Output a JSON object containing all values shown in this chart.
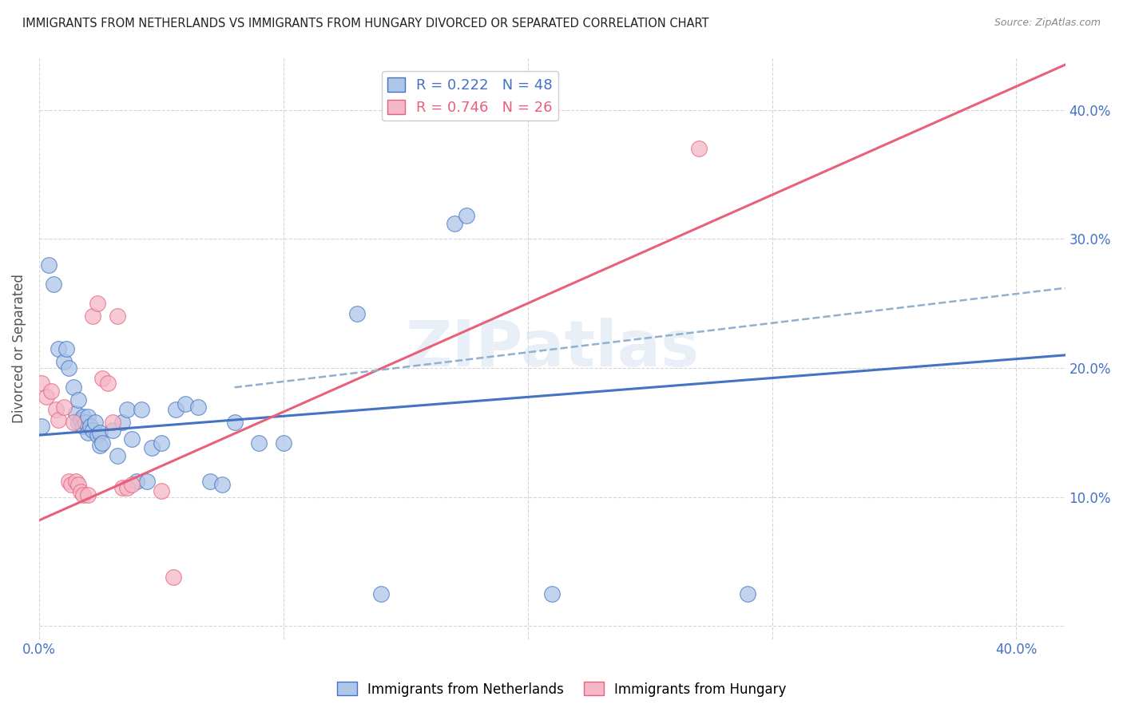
{
  "title": "IMMIGRANTS FROM NETHERLANDS VS IMMIGRANTS FROM HUNGARY DIVORCED OR SEPARATED CORRELATION CHART",
  "source": "Source: ZipAtlas.com",
  "ylabel": "Divorced or Separated",
  "xlim": [
    0.0,
    0.42
  ],
  "ylim": [
    -0.01,
    0.44
  ],
  "xticks": [
    0.0,
    0.1,
    0.2,
    0.3,
    0.4
  ],
  "yticks": [
    0.0,
    0.1,
    0.2,
    0.3,
    0.4
  ],
  "watermark": "ZIPatlas",
  "netherlands_color": "#aec6e8",
  "hungary_color": "#f4b8c8",
  "netherlands_line_color": "#4472c4",
  "hungary_line_color": "#e8607a",
  "dashed_line_color": "#90b0d0",
  "netherlands_scatter": [
    [
      0.001,
      0.155
    ],
    [
      0.004,
      0.28
    ],
    [
      0.006,
      0.265
    ],
    [
      0.008,
      0.215
    ],
    [
      0.01,
      0.205
    ],
    [
      0.011,
      0.215
    ],
    [
      0.012,
      0.2
    ],
    [
      0.014,
      0.185
    ],
    [
      0.015,
      0.165
    ],
    [
      0.016,
      0.175
    ],
    [
      0.016,
      0.158
    ],
    [
      0.017,
      0.16
    ],
    [
      0.018,
      0.162
    ],
    [
      0.018,
      0.155
    ],
    [
      0.019,
      0.158
    ],
    [
      0.02,
      0.162
    ],
    [
      0.02,
      0.15
    ],
    [
      0.021,
      0.155
    ],
    [
      0.022,
      0.152
    ],
    [
      0.023,
      0.158
    ],
    [
      0.024,
      0.148
    ],
    [
      0.025,
      0.15
    ],
    [
      0.025,
      0.14
    ],
    [
      0.026,
      0.142
    ],
    [
      0.03,
      0.152
    ],
    [
      0.032,
      0.132
    ],
    [
      0.034,
      0.158
    ],
    [
      0.036,
      0.168
    ],
    [
      0.038,
      0.145
    ],
    [
      0.04,
      0.112
    ],
    [
      0.042,
      0.168
    ],
    [
      0.044,
      0.112
    ],
    [
      0.046,
      0.138
    ],
    [
      0.05,
      0.142
    ],
    [
      0.056,
      0.168
    ],
    [
      0.06,
      0.172
    ],
    [
      0.065,
      0.17
    ],
    [
      0.07,
      0.112
    ],
    [
      0.075,
      0.11
    ],
    [
      0.08,
      0.158
    ],
    [
      0.09,
      0.142
    ],
    [
      0.1,
      0.142
    ],
    [
      0.13,
      0.242
    ],
    [
      0.14,
      0.025
    ],
    [
      0.17,
      0.312
    ],
    [
      0.175,
      0.318
    ],
    [
      0.21,
      0.025
    ],
    [
      0.29,
      0.025
    ]
  ],
  "hungary_scatter": [
    [
      0.001,
      0.188
    ],
    [
      0.003,
      0.178
    ],
    [
      0.005,
      0.182
    ],
    [
      0.007,
      0.168
    ],
    [
      0.008,
      0.16
    ],
    [
      0.01,
      0.17
    ],
    [
      0.012,
      0.112
    ],
    [
      0.013,
      0.11
    ],
    [
      0.014,
      0.158
    ],
    [
      0.015,
      0.112
    ],
    [
      0.016,
      0.11
    ],
    [
      0.017,
      0.104
    ],
    [
      0.018,
      0.102
    ],
    [
      0.02,
      0.102
    ],
    [
      0.022,
      0.24
    ],
    [
      0.024,
      0.25
    ],
    [
      0.026,
      0.192
    ],
    [
      0.028,
      0.188
    ],
    [
      0.03,
      0.158
    ],
    [
      0.032,
      0.24
    ],
    [
      0.034,
      0.107
    ],
    [
      0.036,
      0.107
    ],
    [
      0.038,
      0.11
    ],
    [
      0.05,
      0.105
    ],
    [
      0.055,
      0.038
    ],
    [
      0.27,
      0.37
    ]
  ],
  "netherlands_trendline": [
    [
      0.0,
      0.148
    ],
    [
      0.42,
      0.21
    ]
  ],
  "hungary_trendline": [
    [
      0.0,
      0.082
    ],
    [
      0.42,
      0.435
    ]
  ],
  "dashed_trendline": [
    [
      0.08,
      0.185
    ],
    [
      0.42,
      0.262
    ]
  ]
}
